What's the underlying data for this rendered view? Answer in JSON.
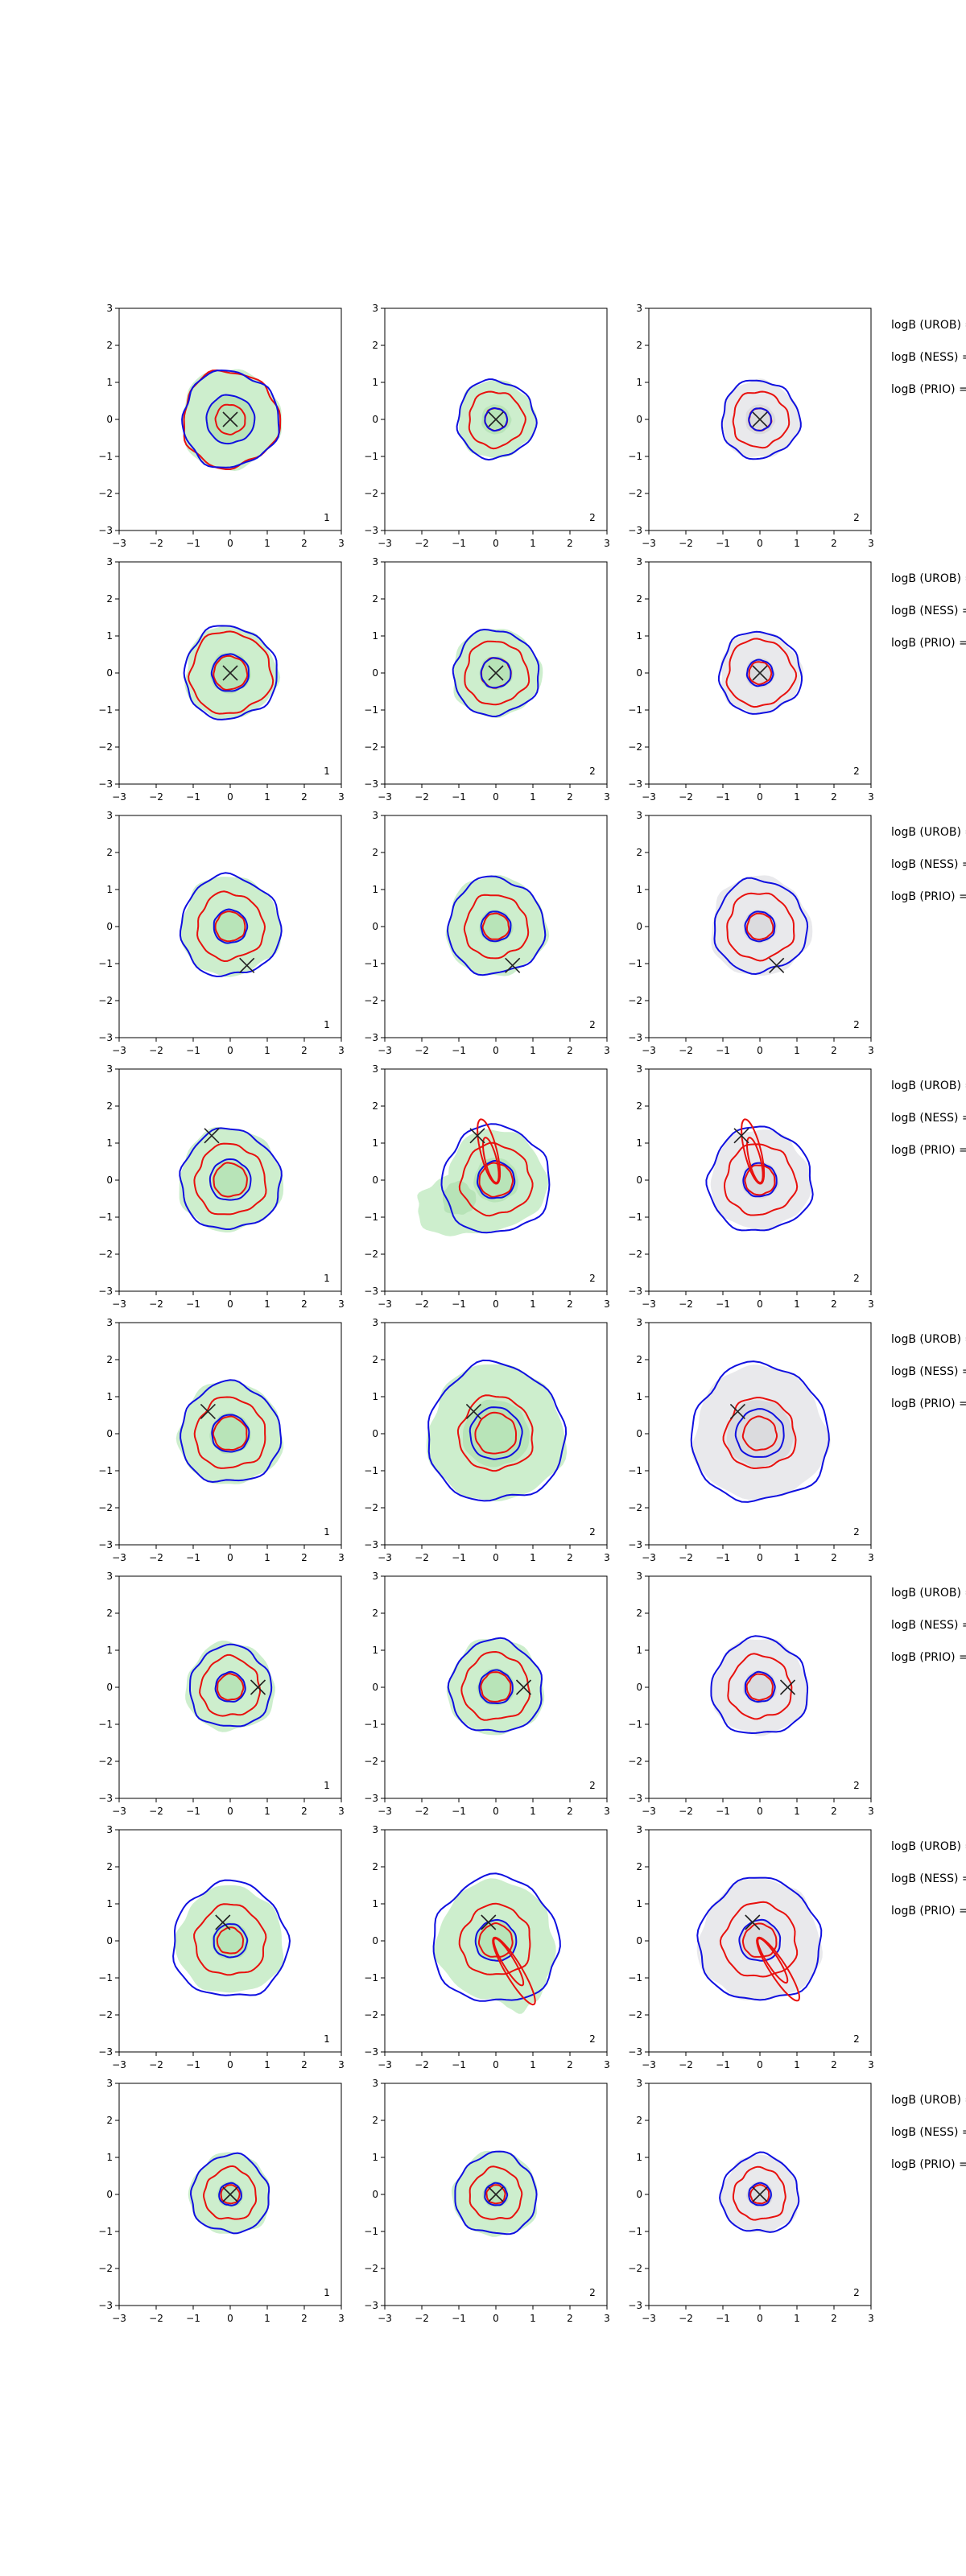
{
  "chart_data": {
    "type": "contour",
    "rows": 8,
    "cols": 3,
    "xlim": [
      -3,
      3
    ],
    "ylim": [
      -3,
      3
    ],
    "ticks": [
      -3,
      -2,
      -1,
      0,
      1,
      2,
      3
    ],
    "grid": false,
    "colors": {
      "fill_green": "#cdeecd",
      "fill_gray": "#e9e9ec",
      "blob_green": "#a8dca8",
      "blob_gray": "#cfcfd4",
      "red": "#e8110e",
      "blue": "#1010e0",
      "marker": "#222222"
    },
    "col_fill": [
      "green",
      "green",
      "gray"
    ],
    "col_panel_label": [
      "1",
      "2",
      "2"
    ],
    "row_side_labels": [
      "logB (UROB) =",
      "logB (NESS) =",
      "logB (PRIO) ="
    ],
    "rows_data": [
      {
        "marker": [
          0,
          0
        ],
        "cells": [
          {
            "fill": [
              0.65,
              1.05,
              1.35
            ],
            "blue": [
              0.65,
              1.0,
              1.3
            ],
            "red": [
              0.4,
              1.3,
              1.5
            ],
            "blob": null
          },
          {
            "fill": [
              0.4,
              0.85,
              1.05
            ],
            "blue": [
              0.3,
              0.8,
              1.05
            ],
            "red": [
              0.3,
              0.75,
              1.0
            ],
            "blob": null
          },
          {
            "fill": [
              0.4,
              0.85,
              1.05
            ],
            "blue": [
              0.3,
              0.85,
              1.05
            ],
            "red": [
              0.3,
              0.75,
              1.0
            ],
            "blob": null
          }
        ]
      },
      {
        "marker": [
          0,
          0
        ],
        "cells": [
          {
            "fill": [
              0.55,
              1.0,
              1.25
            ],
            "blue": [
              0.5,
              1.05,
              1.25
            ],
            "red": [
              0.45,
              1.1,
              1.3
            ],
            "blob": null
          },
          {
            "fill": [
              0.45,
              0.95,
              1.2
            ],
            "blue": [
              0.4,
              0.9,
              1.15
            ],
            "red": [
              0.4,
              0.85,
              1.3
            ],
            "blob": null
          },
          {
            "fill": [
              0.4,
              0.8,
              1.1
            ],
            "blue": [
              0.35,
              0.85,
              1.1
            ],
            "red": [
              0.3,
              0.9,
              1.3
            ],
            "blob": null
          }
        ]
      },
      {
        "marker": [
          0.45,
          -1.05
        ],
        "cells": [
          {
            "fill": [
              0.45,
              1.0,
              1.35
            ],
            "blue": [
              0.45,
              1.0,
              1.35
            ],
            "red": [
              0.4,
              0.9,
              1.4
            ],
            "blob": null
          },
          {
            "fill": [
              0.45,
              0.95,
              1.35
            ],
            "blue": [
              0.4,
              0.95,
              1.3
            ],
            "red": [
              0.35,
              0.85,
              1.3
            ],
            "blob": null
          },
          {
            "fill": [
              0.45,
              0.95,
              1.35
            ],
            "blue": [
              0.4,
              0.95,
              1.25
            ],
            "red": [
              0.35,
              0.9,
              1.3
            ],
            "blob": null
          }
        ]
      },
      {
        "marker": [
          -0.5,
          1.2
        ],
        "cells": [
          {
            "fill": [
              0.5,
              1.0,
              1.4
            ],
            "blue": [
              0.55,
              1.0,
              1.35
            ],
            "red": [
              0.45,
              0.95,
              1.5
            ],
            "blob": null
          },
          {
            "fill": [
              0.6,
              1.0,
              1.35
            ],
            "blue": [
              0.5,
              1.1,
              1.45
            ],
            "red": [
              0.45,
              0.95,
              1.35
            ],
            "blob": "big",
            "tail": [
              -0.35,
              1.4
            ]
          },
          {
            "fill": [
              0.5,
              1.0,
              1.35
            ],
            "blue": [
              0.45,
              1.1,
              1.4
            ],
            "red": [
              0.4,
              0.95,
              1.3
            ],
            "blob": null,
            "tail": [
              -0.35,
              1.4
            ]
          }
        ]
      },
      {
        "marker": [
          -0.6,
          0.6
        ],
        "cells": [
          {
            "fill": [
              0.55,
              1.0,
              1.4
            ],
            "blue": [
              0.5,
              1.0,
              1.35
            ],
            "red": [
              0.45,
              0.95,
              1.4
            ],
            "blob": null
          },
          {
            "fill": [
              0.9,
              1.6,
              1.85
            ],
            "blue": [
              0.7,
              1.2,
              1.85
            ],
            "red": [
              0.55,
              1.0,
              1.75
            ],
            "blob": null
          },
          {
            "fill": [
              0.9,
              1.5,
              1.8
            ],
            "blue": [
              0.65,
              1.15,
              1.85
            ],
            "red": [
              0.45,
              0.95,
              1.65
            ],
            "blob": null
          }
        ]
      },
      {
        "marker": [
          0.75,
          0
        ],
        "cells": [
          {
            "fill": [
              0.4,
              0.9,
              1.2
            ],
            "blue": [
              0.4,
              0.85,
              1.1
            ],
            "red": [
              0.35,
              0.8,
              1.25
            ],
            "blob": null
          },
          {
            "fill": [
              0.5,
              1.0,
              1.3
            ],
            "blue": [
              0.45,
              0.95,
              1.25
            ],
            "red": [
              0.4,
              0.9,
              1.45
            ],
            "blob": null
          },
          {
            "fill": [
              0.45,
              0.95,
              1.3
            ],
            "blue": [
              0.4,
              0.9,
              1.3
            ],
            "red": [
              0.35,
              0.85,
              1.4
            ],
            "blob": null
          }
        ]
      },
      {
        "marker": [
          -0.2,
          0.5
        ],
        "cells": [
          {
            "fill": [
              0.5,
              1.0,
              1.45
            ],
            "blue": [
              0.45,
              1.05,
              1.55
            ],
            "red": [
              0.35,
              0.95,
              1.3
            ],
            "blob": null
          },
          {
            "fill": [
              0.55,
              1.1,
              1.6
            ],
            "blue": [
              0.55,
              1.15,
              1.7
            ],
            "red": [
              0.45,
              0.95,
              1.45
            ],
            "blob": "diag",
            "tail": [
              0.9,
              -1.5
            ]
          },
          {
            "fill": [
              0.55,
              1.2,
              1.65
            ],
            "blue": [
              0.55,
              1.2,
              1.65
            ],
            "red": [
              0.45,
              1.0,
              1.45
            ],
            "blob": null,
            "tail": [
              0.9,
              -1.4
            ]
          }
        ]
      },
      {
        "marker": [
          0,
          0
        ],
        "cells": [
          {
            "fill": [
              0.35,
              0.75,
              1.1
            ],
            "blue": [
              0.3,
              0.7,
              1.05
            ],
            "red": [
              0.25,
              0.7,
              1.1
            ],
            "blob": null
          },
          {
            "fill": [
              0.35,
              0.85,
              1.15
            ],
            "blue": [
              0.3,
              0.8,
              1.1
            ],
            "red": [
              0.25,
              0.7,
              1.05
            ],
            "blob": null
          },
          {
            "fill": [
              0.35,
              0.8,
              1.05
            ],
            "blue": [
              0.3,
              0.75,
              1.05
            ],
            "red": [
              0.25,
              0.7,
              1.0
            ],
            "blob": null
          }
        ]
      }
    ]
  }
}
